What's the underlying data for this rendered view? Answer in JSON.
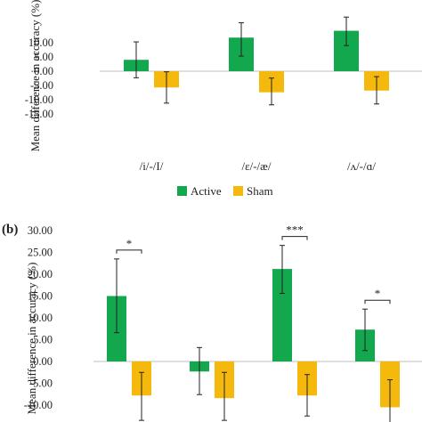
{
  "colors": {
    "active": "#13a84e",
    "sham": "#f5b90d",
    "error": "#222222",
    "axis": "#bfbfbf"
  },
  "legend": {
    "active": "Active",
    "sham": "Sham"
  },
  "chart_data": [
    {
      "type": "bar",
      "panel_label": "",
      "ylabel": "Mean difference in accuracy (%)",
      "ylim": [
        -15,
        15
      ],
      "yticks": [
        "-15.00",
        "-10.00",
        "-5.00",
        "0.00",
        "5.00",
        "10.00"
      ],
      "categories": [
        "/i/-/I/",
        "/ɛ/-/æ/",
        "/ʌ/-/ɑ/"
      ],
      "series": [
        {
          "name": "Active",
          "values": [
            4.0,
            11.8,
            14.2
          ],
          "err_low": [
            -2.3,
            5.3,
            9.0
          ],
          "err_high": [
            10.3,
            17.0,
            19.0
          ]
        },
        {
          "name": "Sham",
          "values": [
            -5.7,
            -7.4,
            -6.8
          ],
          "err_low": [
            -11.2,
            -11.8,
            -11.5
          ],
          "err_high": [
            -0.2,
            -2.4,
            -1.9
          ]
        }
      ],
      "significance": []
    },
    {
      "type": "bar",
      "panel_label": "(b)",
      "ylabel": "Mean difference in accuracy (%)",
      "ylim": [
        -15,
        30
      ],
      "yticks": [
        "-10.00",
        "-5.00",
        "0.00",
        "5.00",
        "10.00",
        "15.00",
        "20.00",
        "25.00",
        "30.00"
      ],
      "categories": [
        "",
        "",
        "",
        ""
      ],
      "series": [
        {
          "name": "Active",
          "values": [
            15.0,
            -2.3,
            21.2,
            7.3
          ],
          "err_low": [
            6.6,
            -7.6,
            15.6,
            2.5
          ],
          "err_high": [
            23.5,
            3.2,
            26.6,
            12.0
          ]
        },
        {
          "name": "Sham",
          "values": [
            -7.8,
            -8.4,
            -7.8,
            -10.5
          ],
          "err_low": [
            -13.5,
            -13.5,
            -12.5,
            -16.0
          ],
          "err_high": [
            -2.5,
            -2.5,
            -3.0,
            -4.2
          ]
        }
      ],
      "significance": [
        {
          "category": 0,
          "label": "*"
        },
        {
          "category": 2,
          "label": "***"
        },
        {
          "category": 3,
          "label": "*"
        }
      ]
    }
  ]
}
